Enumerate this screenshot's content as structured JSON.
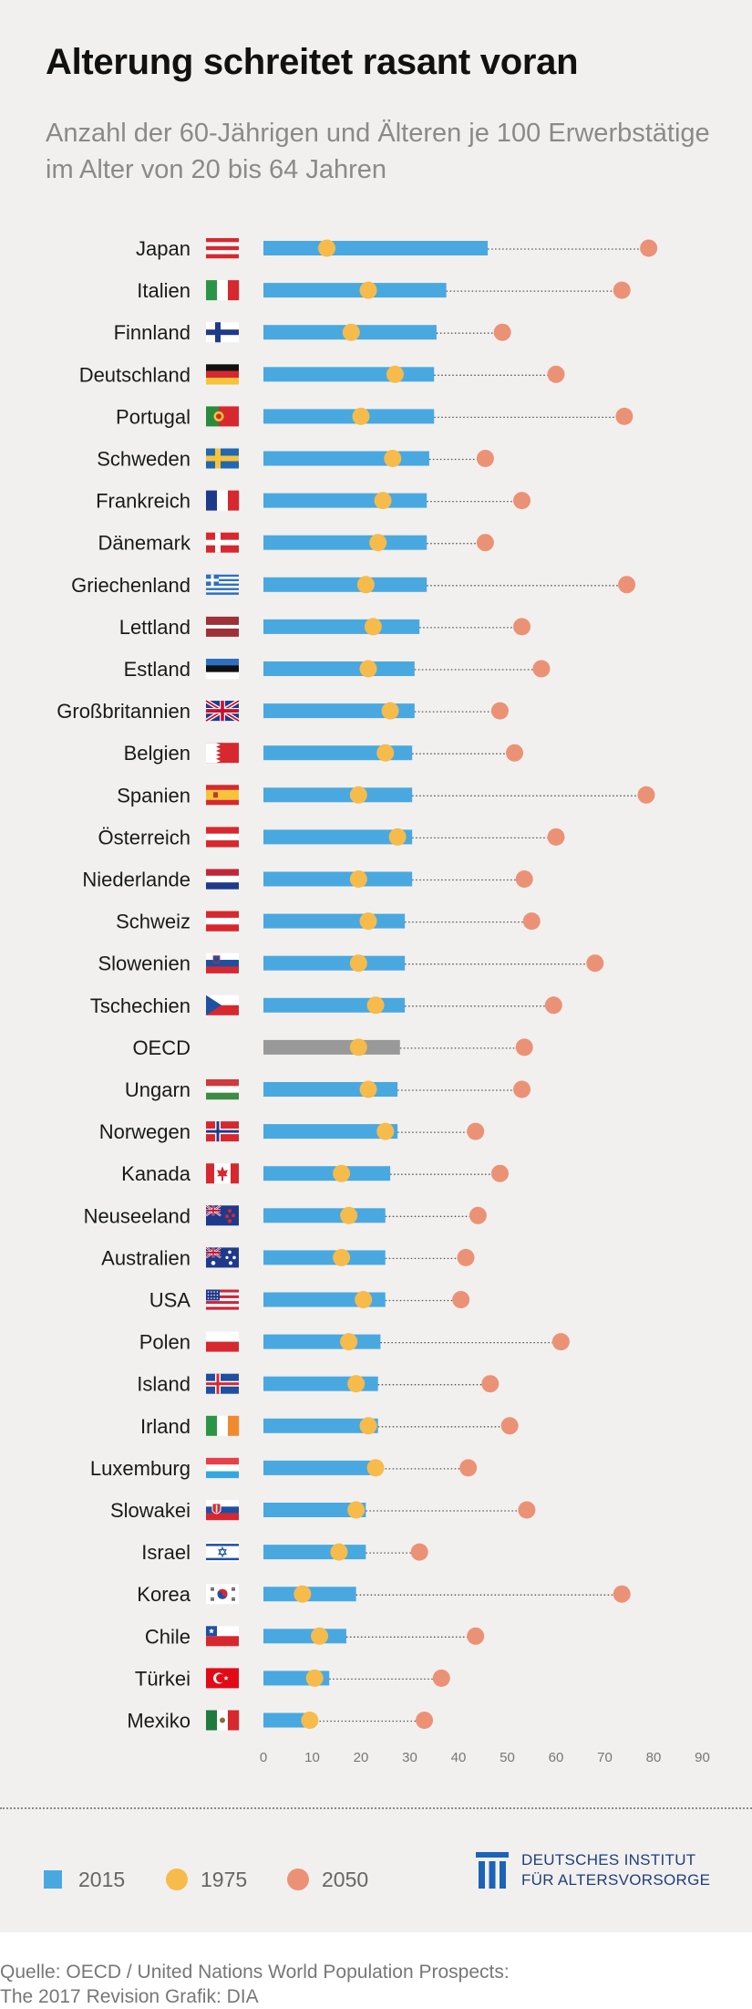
{
  "title": "Alterung schreitet rasant voran",
  "subtitle": "Anzahl der 60-Jährigen und Älteren je 100 Erwerbstätige im Alter von 20 bis 64 Jahren",
  "legend": [
    {
      "label": "2015",
      "color": "#4aa8e0",
      "shape": "square"
    },
    {
      "label": "1975",
      "color": "#f6bb4a",
      "shape": "circle"
    },
    {
      "label": "2050",
      "color": "#eb9276",
      "shape": "circle"
    }
  ],
  "logo": {
    "line1": "DEUTSCHES INSTITUT",
    "line2": "FÜR ALTERSVORSORGE",
    "icon": "dia-logo-icon"
  },
  "source": {
    "line1": "Quelle: OECD / United Nations World Population Prospects:",
    "line2": "The 2017 Revision  Grafik: DIA"
  },
  "colors": {
    "bar": "#4aa8e0",
    "oecd_bar": "#999999",
    "dot_1975": "#f6bb4a",
    "dot_2050": "#eb9276",
    "background": "#f1f0ef"
  },
  "chart_data": {
    "type": "bar",
    "orientation": "horizontal",
    "categories": [
      "Japan",
      "Italien",
      "Finnland",
      "Deutschland",
      "Portugal",
      "Schweden",
      "Frankreich",
      "Dänemark",
      "Griechenland",
      "Lettland",
      "Estland",
      "Großbritannien",
      "Belgien",
      "Spanien",
      "Österreich",
      "Niederlande",
      "Schweiz",
      "Slowenien",
      "Tschechien",
      "OECD",
      "Ungarn",
      "Norwegen",
      "Kanada",
      "Neuseeland",
      "Australien",
      "USA",
      "Polen",
      "Island",
      "Irland",
      "Luxemburg",
      "Slowakei",
      "Israel",
      "Korea",
      "Chile",
      "Türkei",
      "Mexiko"
    ],
    "flags": [
      "flag-japan",
      "flag-italy",
      "flag-finland",
      "flag-germany",
      "flag-portugal",
      "flag-sweden",
      "flag-france",
      "flag-denmark",
      "flag-greece",
      "flag-latvia",
      "flag-estonia",
      "flag-uk",
      "flag-bahrain-like",
      "flag-spain",
      "flag-austria",
      "flag-netherlands",
      "flag-austria",
      "flag-slovenia",
      "flag-czech",
      "",
      "flag-hungary",
      "flag-norway",
      "flag-canada",
      "flag-new-zealand",
      "flag-australia",
      "flag-usa",
      "flag-poland",
      "flag-iceland",
      "flag-ireland",
      "flag-luxembourg",
      "flag-slovakia",
      "flag-israel",
      "flag-korea",
      "flag-chile",
      "flag-turkey",
      "flag-mexico"
    ],
    "series": [
      {
        "name": "2015",
        "type": "bar",
        "values": [
          46,
          37.5,
          35.5,
          35,
          35,
          34,
          33.5,
          33.5,
          33.5,
          32,
          31,
          31,
          30.5,
          30.5,
          30.5,
          30.5,
          29,
          29,
          29,
          28,
          27.5,
          27.5,
          26,
          25,
          25,
          25,
          24,
          23.5,
          23.5,
          22,
          21,
          21,
          19,
          17,
          13.5,
          10
        ]
      },
      {
        "name": "1975",
        "type": "dot",
        "values": [
          13,
          21.5,
          18,
          27,
          20,
          26.5,
          24.5,
          23.5,
          21,
          22.5,
          21.5,
          26,
          25,
          19.5,
          27.5,
          19.5,
          21.5,
          19.5,
          23,
          19.5,
          21.5,
          25,
          16,
          17.5,
          16,
          20.5,
          17.5,
          19,
          21.5,
          23,
          19,
          15.5,
          8,
          11.5,
          10.5,
          9.5
        ]
      },
      {
        "name": "2050",
        "type": "dot",
        "values": [
          79,
          73.5,
          49,
          60,
          74,
          45.5,
          53,
          45.5,
          74.5,
          53,
          57,
          48.5,
          51.5,
          78.5,
          60,
          53.5,
          55,
          68,
          59.5,
          53.5,
          53,
          43.5,
          48.5,
          44,
          41.5,
          40.5,
          61,
          46.5,
          50.5,
          42,
          54,
          32,
          73.5,
          43.5,
          36.5,
          33
        ]
      }
    ],
    "xticks": [
      0,
      10,
      20,
      30,
      40,
      50,
      60,
      70,
      80,
      90
    ],
    "xlim": [
      0,
      90
    ]
  }
}
